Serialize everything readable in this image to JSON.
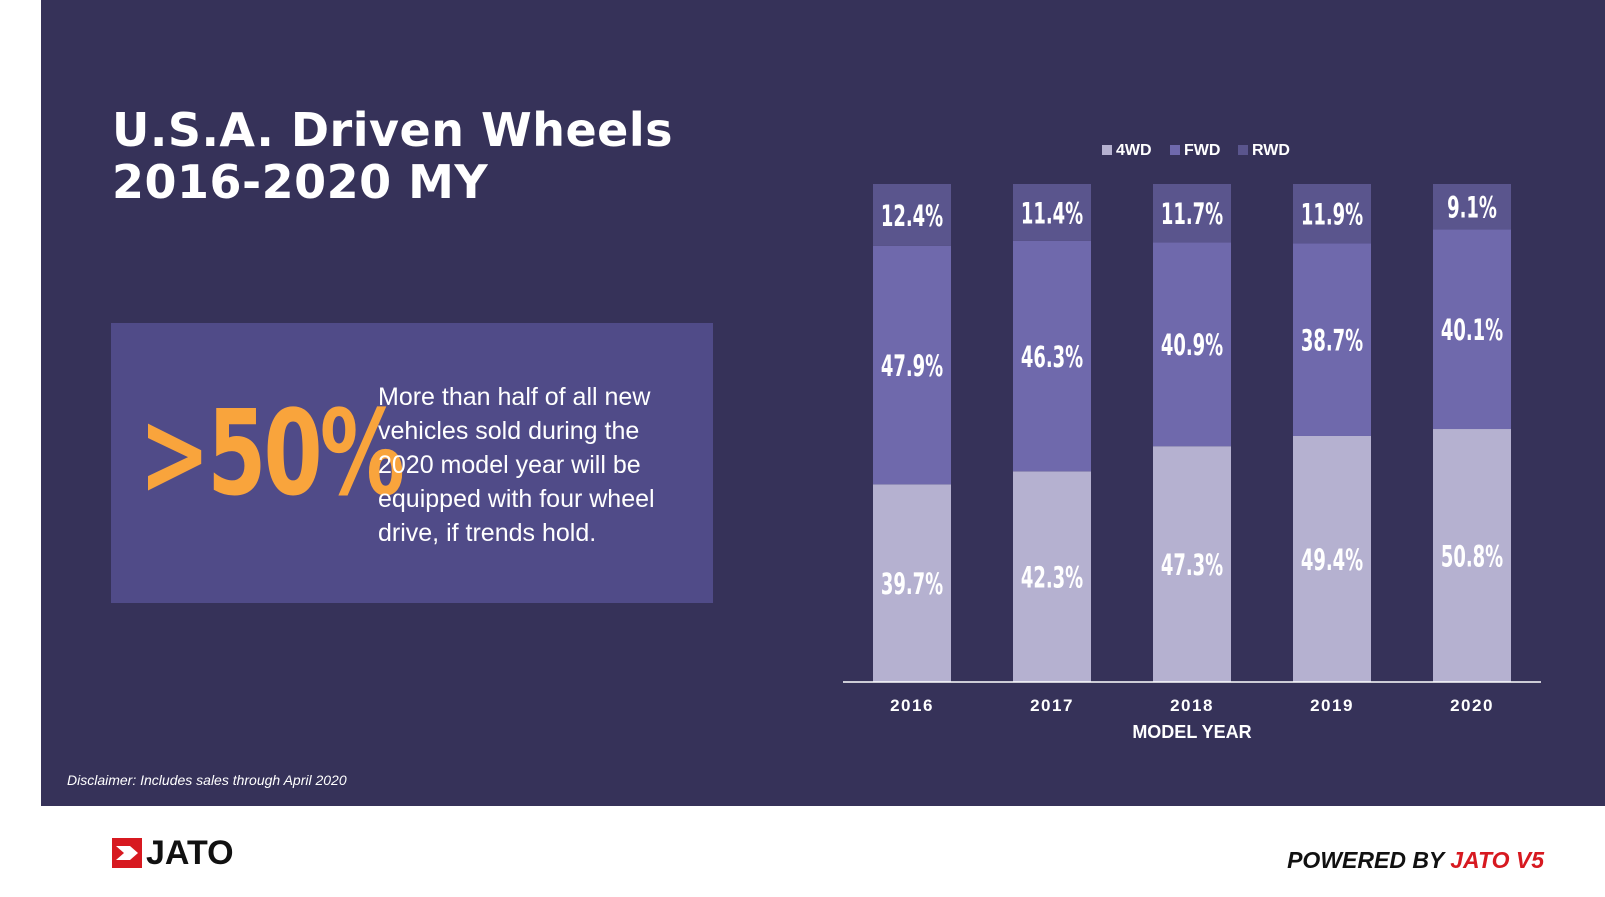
{
  "title": {
    "line1": "U.S.A. Driven Wheels",
    "line2": "2016-2020 MY"
  },
  "callout": {
    "stat": ">50%",
    "text": "More than half of all new vehicles sold during the 2020 model year will be equipped with four wheel drive, if trends hold."
  },
  "disclaimer": "Disclaimer: Includes sales through April 2020",
  "footer": {
    "logo": "JATO",
    "powered_prefix": "POWERED BY ",
    "powered_brand": "JATO V5"
  },
  "colors": {
    "background": "#363259",
    "callout": "#504b88",
    "accent": "#f9a43c",
    "brand_red": "#d71920",
    "series_4wd": "#b5b1d0",
    "series_fwd": "#6f69ac",
    "series_rwd": "#5a558d"
  },
  "chart_data": {
    "type": "bar",
    "stacked": true,
    "categories": [
      "2016",
      "2017",
      "2018",
      "2019",
      "2020"
    ],
    "xlabel": "MODEL YEAR",
    "ylabel": "",
    "ylim": [
      0,
      100
    ],
    "legend_position": "top",
    "series": [
      {
        "name": "4WD",
        "values": [
          39.7,
          42.3,
          47.3,
          49.4,
          50.8
        ],
        "labels": [
          "39.7%",
          "42.3%",
          "47.3%",
          "49.4%",
          "50.8%"
        ]
      },
      {
        "name": "FWD",
        "values": [
          47.9,
          46.3,
          40.9,
          38.7,
          40.1
        ],
        "labels": [
          "47.9%",
          "46.3%",
          "40.9%",
          "38.7%",
          "40.1%"
        ]
      },
      {
        "name": "RWD",
        "values": [
          12.4,
          11.4,
          11.7,
          11.9,
          9.1
        ],
        "labels": [
          "12.4%",
          "11.4%",
          "11.7%",
          "11.9%",
          "9.1%"
        ]
      }
    ]
  }
}
